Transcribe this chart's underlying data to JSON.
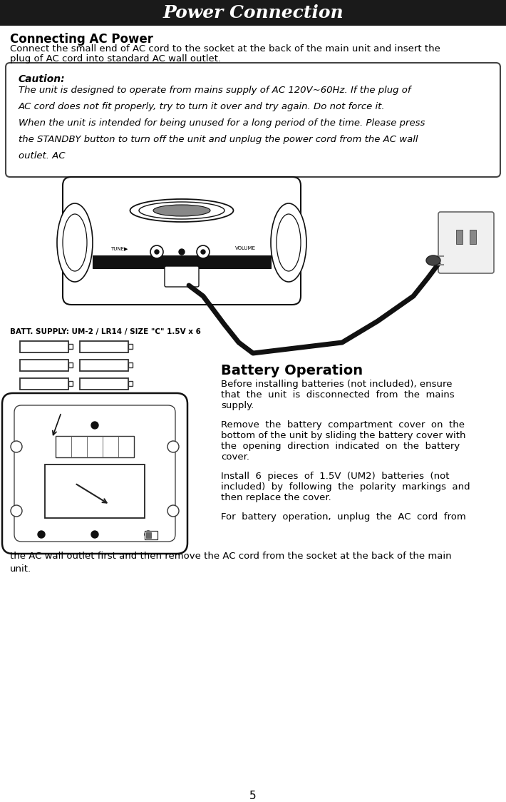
{
  "title": "Power Connection",
  "title_bg": "#1a1a1a",
  "title_color": "#ffffff",
  "title_fontsize": 18,
  "page_bg": "#ffffff",
  "section1_heading": "Connecting AC Power",
  "section1_body_line1": "Connect the small end of AC cord to the socket at the back of the main unit and insert the",
  "section1_body_line2": "plug of AC cord into standard AC wall outlet.",
  "caution_heading": "Caution:",
  "caution_line1": "The unit is designed to operate from mains supply of AC 120V~60Hz. If the plug of",
  "caution_line2": "AC cord does not fit properly, try to turn it over and try again. Do not force it.",
  "caution_line3": "When the unit is intended for being unused for a long period of the time. Please press",
  "caution_line4": "the STANDBY button to turn off the unit and unplug the power cord from the AC wall",
  "caution_line5": "outlet. AC",
  "batt_label": "BATT. SUPPLY: UM-2 / LR14 / SIZE \"C\" 1.5V x 6",
  "section2_heading": "Battery Operation",
  "section2_para1_line1": "Before installing batteries (not included), ensure",
  "section2_para1_line2": "that  the  unit  is  disconnected  from  the  mains",
  "section2_para1_line3": "supply.",
  "section2_para2_line1": "Remove  the  battery  compartment  cover  on  the",
  "section2_para2_line2": "bottom of the unit by sliding the battery cover with",
  "section2_para2_line3": "the  opening  direction  indicated  on  the  battery",
  "section2_para2_line4": "cover.",
  "section2_para3_line1": "Install  6  pieces  of  1.5V  (UM2)  batteries  (not",
  "section2_para3_line2": "included)  by  following  the  polarity  markings  and",
  "section2_para3_line3": "then replace the cover.",
  "section2_para4_line1": "For  battery  operation,  unplug  the  AC  cord  from",
  "section2_para4_rest": "the AC wall outlet first and then remove the AC cord from the socket at the back of the main\nunit.",
  "page_number": "5",
  "body_fontsize": 9.5,
  "heading_fontsize": 12,
  "caution_heading_fontsize": 10,
  "caution_body_fontsize": 9.5,
  "title_bar_height": 36
}
